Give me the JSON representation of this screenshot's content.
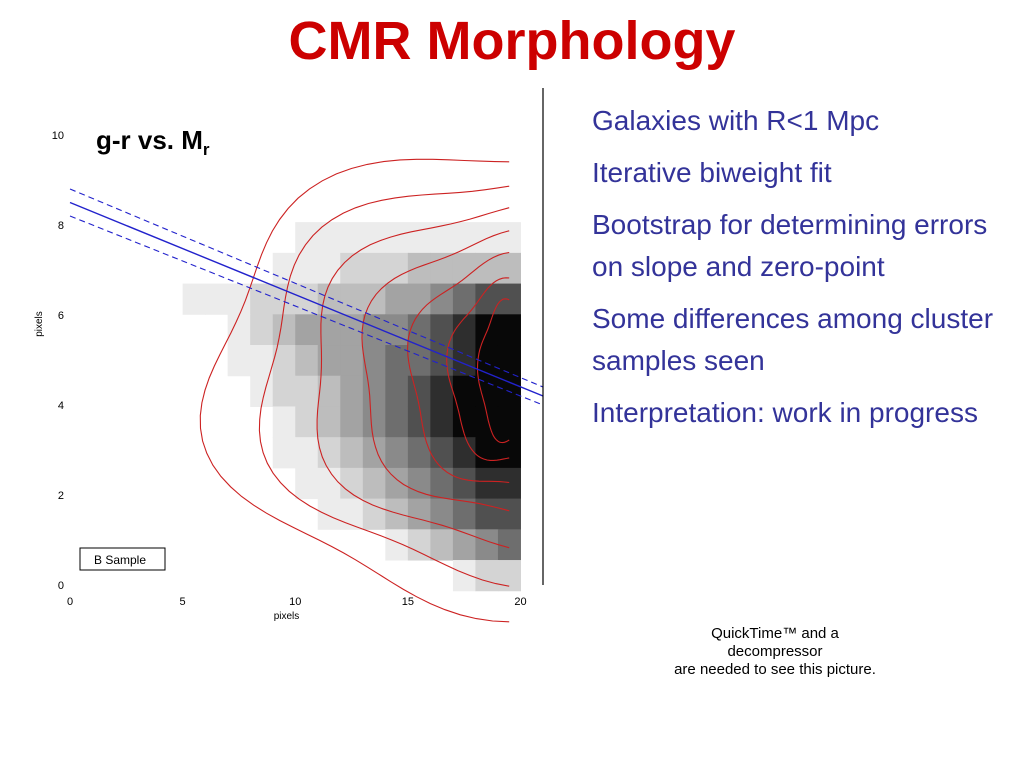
{
  "slide": {
    "title": "CMR Morphology",
    "plot_label": "g-r vs. M",
    "plot_label_sub": "r",
    "bullets": [
      "Galaxies with R<1 Mpc",
      "Iterative biweight fit",
      "Bootstrap for determining errors on slope and zero-point",
      "Some differences among cluster samples seen",
      "Interpretation: work in progress"
    ],
    "placeholder_lines": [
      "QuickTime™ and a",
      "decompressor",
      "are needed to see this picture."
    ],
    "colors": {
      "title": "#cc0000",
      "bullets": "#333399",
      "contours": "#cc2222",
      "fit": "#2222cc"
    }
  },
  "chart_data": {
    "type": "heatmap",
    "xlabel": "pixels",
    "ylabel": "pixels",
    "xlim": [
      0,
      21
    ],
    "ylim": [
      0,
      10
    ],
    "xticks": [
      "0",
      "5",
      "10",
      "15",
      "20"
    ],
    "yticks": [
      "0",
      "2",
      "4",
      "6",
      "8",
      "10"
    ],
    "legend": "B Sample",
    "rows_top_to_bottom": [
      [
        0,
        0,
        0,
        0,
        0,
        0,
        0,
        0,
        0,
        0,
        0,
        0,
        0,
        0,
        0,
        0,
        0,
        0,
        0,
        0,
        0
      ],
      [
        0,
        0,
        0,
        0,
        0,
        0,
        0,
        0,
        0,
        0,
        0,
        0,
        0,
        0,
        0,
        0,
        0,
        0,
        0,
        0,
        0
      ],
      [
        0,
        0,
        0,
        0,
        0,
        0,
        0,
        0,
        0,
        0,
        0,
        0,
        0,
        0,
        0,
        0,
        0,
        0,
        0,
        0,
        0
      ],
      [
        0,
        0,
        0,
        0,
        0,
        0,
        0,
        0,
        0,
        0,
        1,
        1,
        1,
        1,
        1,
        1,
        1,
        1,
        1,
        1,
        0
      ],
      [
        0,
        0,
        0,
        0,
        0,
        0,
        0,
        0,
        0,
        1,
        1,
        1,
        2,
        2,
        2,
        3,
        3,
        3,
        3,
        3,
        0
      ],
      [
        0,
        0,
        0,
        0,
        0,
        1,
        1,
        1,
        2,
        2,
        2,
        3,
        3,
        3,
        4,
        4,
        5,
        6,
        7,
        7,
        0
      ],
      [
        0,
        0,
        0,
        0,
        0,
        0,
        0,
        1,
        2,
        3,
        4,
        4,
        4,
        5,
        5,
        6,
        7,
        8,
        9,
        9,
        0
      ],
      [
        0,
        0,
        0,
        0,
        0,
        0,
        0,
        1,
        1,
        2,
        3,
        4,
        4,
        5,
        6,
        6,
        7,
        8,
        9,
        9,
        0
      ],
      [
        0,
        0,
        0,
        0,
        0,
        0,
        0,
        0,
        1,
        2,
        2,
        3,
        4,
        5,
        6,
        7,
        8,
        9,
        9,
        9,
        0
      ],
      [
        0,
        0,
        0,
        0,
        0,
        0,
        0,
        0,
        0,
        1,
        2,
        3,
        4,
        5,
        6,
        7,
        8,
        9,
        9,
        9,
        0
      ],
      [
        0,
        0,
        0,
        0,
        0,
        0,
        0,
        0,
        0,
        1,
        1,
        2,
        3,
        4,
        5,
        6,
        7,
        8,
        9,
        9,
        0
      ],
      [
        0,
        0,
        0,
        0,
        0,
        0,
        0,
        0,
        0,
        0,
        1,
        1,
        2,
        3,
        4,
        5,
        6,
        7,
        8,
        8,
        0
      ],
      [
        0,
        0,
        0,
        0,
        0,
        0,
        0,
        0,
        0,
        0,
        0,
        1,
        1,
        2,
        3,
        4,
        5,
        6,
        7,
        7,
        0
      ],
      [
        0,
        0,
        0,
        0,
        0,
        0,
        0,
        0,
        0,
        0,
        0,
        0,
        0,
        0,
        1,
        2,
        3,
        4,
        5,
        6,
        0
      ],
      [
        0,
        0,
        0,
        0,
        0,
        0,
        0,
        0,
        0,
        0,
        0,
        0,
        0,
        0,
        0,
        0,
        0,
        1,
        2,
        2,
        0
      ]
    ],
    "fit_line": {
      "x": [
        0,
        21
      ],
      "y": [
        8.5,
        4.2
      ]
    },
    "fit_error_bounds": [
      {
        "x": [
          0,
          21
        ],
        "y": [
          8.8,
          4.4
        ]
      },
      {
        "x": [
          0,
          21
        ],
        "y": [
          8.2,
          4.0
        ]
      }
    ],
    "vertical_line_x": 21
  }
}
